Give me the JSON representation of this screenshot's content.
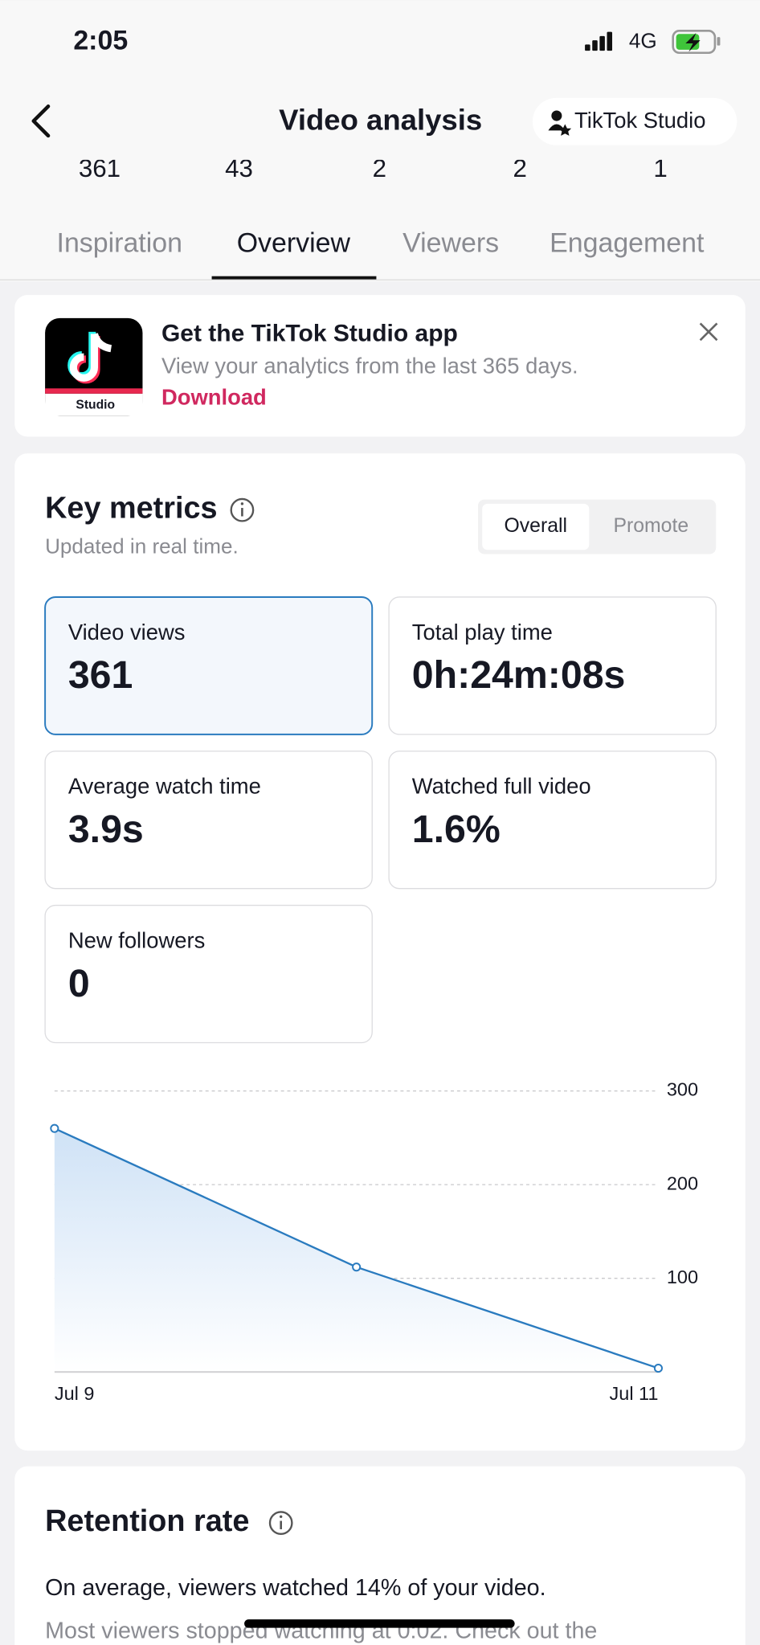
{
  "status_bar": {
    "time": "2:05",
    "network": "4G"
  },
  "header": {
    "title": "Video analysis",
    "studio_button": "TikTok Studio"
  },
  "stats_row": [
    "361",
    "43",
    "2",
    "2",
    "1"
  ],
  "tabs": {
    "items": [
      "Inspiration",
      "Overview",
      "Viewers",
      "Engagement"
    ],
    "active": 1
  },
  "banner": {
    "icon_label": "Studio",
    "title": "Get the TikTok Studio app",
    "subtitle": "View your analytics from the last 365 days.",
    "link": "Download"
  },
  "key_metrics": {
    "title": "Key metrics",
    "subtitle": "Updated in real time.",
    "toggle": [
      "Overall",
      "Promote"
    ],
    "cards": [
      {
        "label": "Video views",
        "value": "361"
      },
      {
        "label": "Total play time",
        "value": "0h:24m:08s"
      },
      {
        "label": "Average watch time",
        "value": "3.9s"
      },
      {
        "label": "Watched full video",
        "value": "1.6%"
      },
      {
        "label": "New followers",
        "value": "0"
      }
    ]
  },
  "chart_data": {
    "type": "line",
    "categories": [
      "Jul 9",
      null,
      "Jul 11"
    ],
    "values": [
      260,
      112,
      4
    ],
    "color": "#2a7bbf",
    "ylim": [
      0,
      300
    ],
    "yticks": [
      100,
      200,
      300
    ],
    "grid": true
  },
  "retention": {
    "title": "Retention rate",
    "line1": "On average, viewers watched 14% of your video.",
    "line2": "Most viewers stopped watching at 0:02. Check out the"
  }
}
